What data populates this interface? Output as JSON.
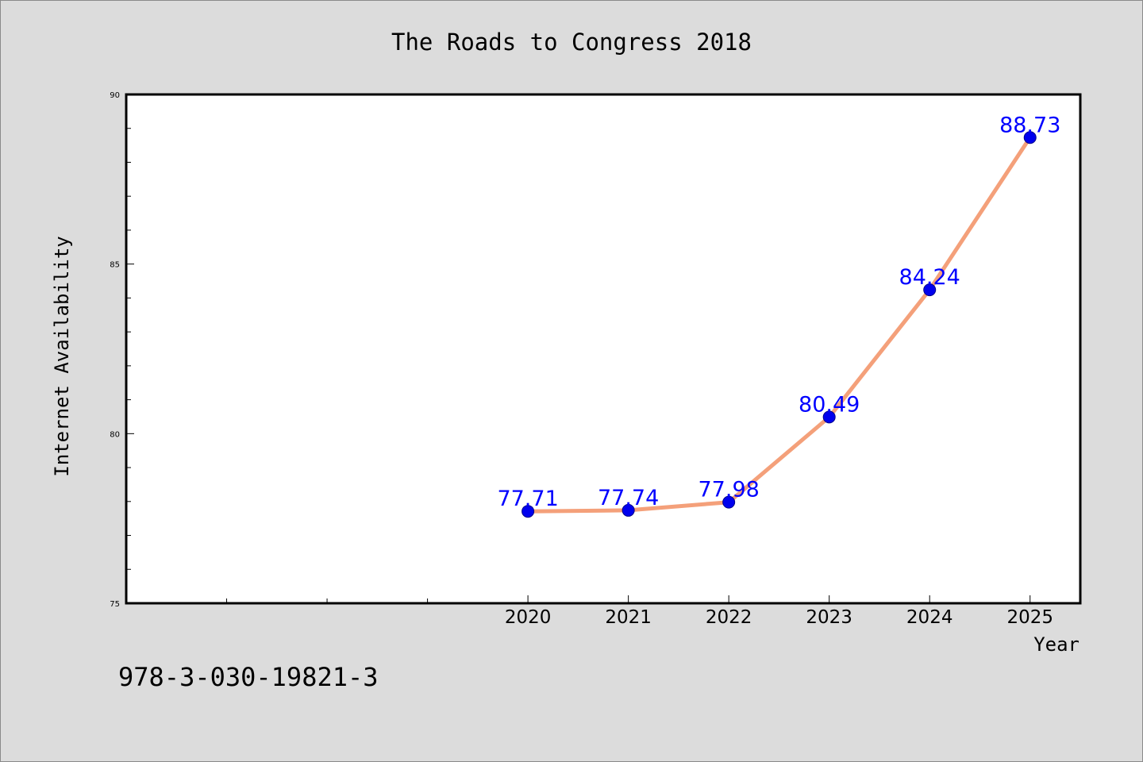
{
  "chart_data": {
    "type": "line",
    "title": "The Roads to Congress 2018",
    "xlabel": "Year",
    "ylabel": "Internet Availability",
    "x": [
      "2020",
      "2021",
      "2022",
      "2023",
      "2024",
      "2025"
    ],
    "series": [
      {
        "values": [
          77.71,
          77.74,
          77.98,
          80.49,
          84.24,
          88.73
        ],
        "labels": [
          "77.71",
          "77.74",
          "77.98",
          "80.49",
          "84.24",
          "88.73"
        ]
      }
    ],
    "ylim": [
      75,
      90
    ],
    "yticks": [
      "75",
      "80",
      "85",
      "90"
    ],
    "xlim_index": [
      -4,
      5.5
    ],
    "grid": false,
    "legend": "none",
    "colors": {
      "line": "#f4a07a",
      "marker": "#0000ee",
      "marker_edge": "#00008b",
      "data_label": "#0000ff",
      "background": "#dcdcdc",
      "plot_background": "#ffffff"
    }
  },
  "footer": {
    "isbn": "978-3-030-19821-3"
  }
}
